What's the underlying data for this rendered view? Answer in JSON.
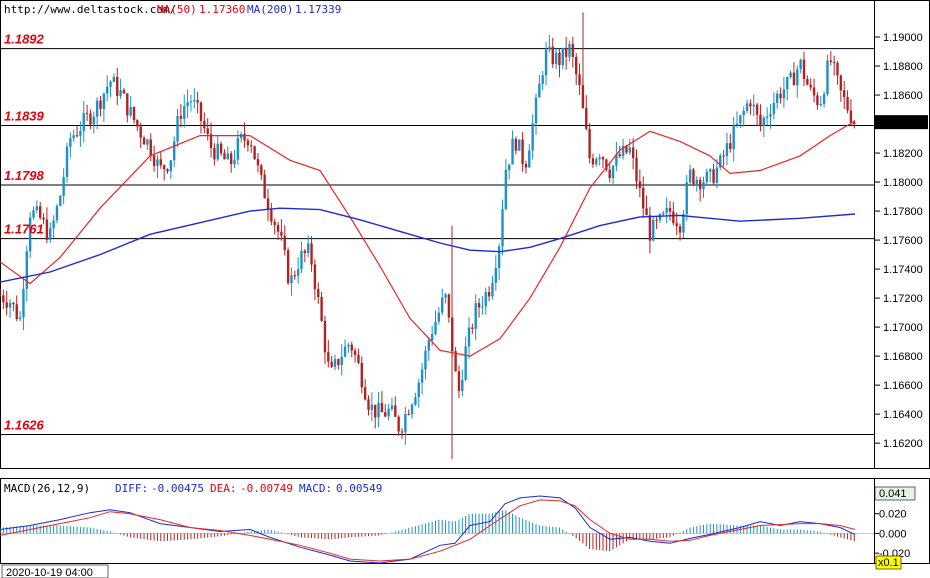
{
  "header": {
    "source": "http://www.deltastock.com/",
    "ma50_label": "MA(50)",
    "ma50_value": "1.17360",
    "ma200_label": "MA(200)",
    "ma200_value": "1.17339"
  },
  "colors": {
    "bull": "#1e90c8",
    "bear": "#b22222",
    "ma50": "#e8272a",
    "ma200": "#1c2bd6",
    "level_text": "#e8000b"
  },
  "chart_data": [
    {
      "type": "candlestick",
      "ylim": [
        1.1607,
        1.192
      ],
      "y_ticks": [
        "1.19000",
        "1.18800",
        "1.18600",
        "1.18400",
        "1.18200",
        "1.18000",
        "1.17800",
        "1.17600",
        "1.17400",
        "1.17200",
        "1.17000",
        "1.16800",
        "1.16600",
        "1.16400",
        "1.16200"
      ],
      "y_tick_values": [
        1.19,
        1.188,
        1.186,
        1.184,
        1.182,
        1.18,
        1.178,
        1.176,
        1.174,
        1.172,
        1.17,
        1.168,
        1.166,
        1.164,
        1.162
      ],
      "current_price": "1.18413",
      "current_price_value": 1.18413,
      "levels": [
        {
          "label": "1.1892",
          "value": 1.1892
        },
        {
          "label": "1.1839",
          "value": 1.1839
        },
        {
          "label": "1.1798",
          "value": 1.1798
        },
        {
          "label": "1.1761",
          "value": 1.1761
        },
        {
          "label": "1.1626",
          "value": 1.1626
        }
      ],
      "close_path": [
        [
          0,
          1.1722
        ],
        [
          10,
          1.1718
        ],
        [
          20,
          1.1705
        ],
        [
          25,
          1.1745
        ],
        [
          30,
          1.178
        ],
        [
          40,
          1.1775
        ],
        [
          50,
          1.1762
        ],
        [
          60,
          1.179
        ],
        [
          70,
          1.183
        ],
        [
          80,
          1.1838
        ],
        [
          95,
          1.185
        ],
        [
          110,
          1.187
        ],
        [
          120,
          1.1862
        ],
        [
          130,
          1.1848
        ],
        [
          140,
          1.1835
        ],
        [
          150,
          1.1825
        ],
        [
          160,
          1.1808
        ],
        [
          170,
          1.1815
        ],
        [
          180,
          1.1848
        ],
        [
          190,
          1.1858
        ],
        [
          200,
          1.1845
        ],
        [
          210,
          1.1825
        ],
        [
          220,
          1.1818
        ],
        [
          230,
          1.1812
        ],
        [
          240,
          1.1828
        ],
        [
          250,
          1.1832
        ],
        [
          260,
          1.1802
        ],
        [
          270,
          1.1782
        ],
        [
          280,
          1.1762
        ],
        [
          290,
          1.173
        ],
        [
          300,
          1.1748
        ],
        [
          310,
          1.1752
        ],
        [
          320,
          1.171
        ],
        [
          330,
          1.1665
        ],
        [
          340,
          1.168
        ],
        [
          350,
          1.169
        ],
        [
          360,
          1.167
        ],
        [
          370,
          1.1645
        ],
        [
          380,
          1.164
        ],
        [
          390,
          1.1642
        ],
        [
          400,
          1.163
        ],
        [
          410,
          1.1648
        ],
        [
          420,
          1.1665
        ],
        [
          430,
          1.1695
        ],
        [
          440,
          1.1712
        ],
        [
          445,
          1.1722
        ],
        [
          452,
          1.1688
        ],
        [
          458,
          1.1652
        ],
        [
          465,
          1.1682
        ],
        [
          475,
          1.171
        ],
        [
          490,
          1.1728
        ],
        [
          500,
          1.1762
        ],
        [
          505,
          1.1808
        ],
        [
          515,
          1.183
        ],
        [
          525,
          1.1812
        ],
        [
          535,
          1.1848
        ],
        [
          545,
          1.1888
        ],
        [
          560,
          1.1884
        ],
        [
          570,
          1.1892
        ],
        [
          580,
          1.1862
        ],
        [
          590,
          1.1815
        ],
        [
          600,
          1.1822
        ],
        [
          610,
          1.1808
        ],
        [
          620,
          1.1818
        ],
        [
          630,
          1.1822
        ],
        [
          640,
          1.1792
        ],
        [
          650,
          1.1765
        ],
        [
          660,
          1.1772
        ],
        [
          670,
          1.178
        ],
        [
          680,
          1.1772
        ],
        [
          690,
          1.1805
        ],
        [
          700,
          1.1802
        ],
        [
          710,
          1.1802
        ],
        [
          720,
          1.1812
        ],
        [
          730,
          1.1828
        ],
        [
          740,
          1.1842
        ],
        [
          750,
          1.1858
        ],
        [
          760,
          1.1838
        ],
        [
          770,
          1.1852
        ],
        [
          780,
          1.1862
        ],
        [
          790,
          1.1868
        ],
        [
          800,
          1.1882
        ],
        [
          810,
          1.1862
        ],
        [
          820,
          1.1855
        ],
        [
          830,
          1.1885
        ],
        [
          840,
          1.1862
        ],
        [
          850,
          1.1848
        ],
        [
          855,
          1.1841
        ]
      ],
      "ma50": [
        [
          0,
          1.1745
        ],
        [
          30,
          1.173
        ],
        [
          60,
          1.1748
        ],
        [
          100,
          1.1782
        ],
        [
          150,
          1.1818
        ],
        [
          200,
          1.1832
        ],
        [
          250,
          1.1832
        ],
        [
          290,
          1.1815
        ],
        [
          320,
          1.1808
        ],
        [
          350,
          1.1776
        ],
        [
          380,
          1.1742
        ],
        [
          410,
          1.1706
        ],
        [
          440,
          1.1684
        ],
        [
          470,
          1.168
        ],
        [
          500,
          1.1692
        ],
        [
          530,
          1.172
        ],
        [
          560,
          1.1755
        ],
        [
          590,
          1.1796
        ],
        [
          620,
          1.1822
        ],
        [
          650,
          1.1835
        ],
        [
          680,
          1.1828
        ],
        [
          710,
          1.1818
        ],
        [
          730,
          1.1806
        ],
        [
          760,
          1.1808
        ],
        [
          800,
          1.1818
        ],
        [
          830,
          1.1832
        ],
        [
          855,
          1.1842
        ]
      ],
      "ma200": [
        [
          0,
          1.1731
        ],
        [
          50,
          1.1738
        ],
        [
          100,
          1.175
        ],
        [
          150,
          1.1764
        ],
        [
          200,
          1.1772
        ],
        [
          250,
          1.178
        ],
        [
          280,
          1.1782
        ],
        [
          320,
          1.1781
        ],
        [
          360,
          1.1774
        ],
        [
          400,
          1.1766
        ],
        [
          440,
          1.1758
        ],
        [
          470,
          1.1753
        ],
        [
          500,
          1.1752
        ],
        [
          530,
          1.1755
        ],
        [
          560,
          1.1761
        ],
        [
          600,
          1.177
        ],
        [
          640,
          1.1776
        ],
        [
          680,
          1.1777
        ],
        [
          740,
          1.1773
        ],
        [
          800,
          1.1775
        ],
        [
          855,
          1.1778
        ]
      ]
    },
    {
      "type": "macd",
      "params": "MACD(26,12,9)",
      "diff_label": "DIFF:",
      "diff": "-0.00475",
      "dea_label": "DEA:",
      "dea": "-0.00749",
      "macd_label": "MACD:",
      "macd": "0.00549",
      "ylim": [
        -0.031,
        0.041
      ],
      "y_ticks": [
        "0.041",
        "0.020",
        "0.000",
        "-0.020"
      ],
      "y_tick_values": [
        0.041,
        0.02,
        0.0,
        -0.02
      ],
      "diff_series": [
        [
          0,
          0.004
        ],
        [
          30,
          0.008
        ],
        [
          60,
          0.014
        ],
        [
          90,
          0.021
        ],
        [
          110,
          0.024
        ],
        [
          130,
          0.021
        ],
        [
          160,
          0.01
        ],
        [
          190,
          0.006
        ],
        [
          220,
          0.002
        ],
        [
          250,
          0.004
        ],
        [
          270,
          -0.004
        ],
        [
          300,
          -0.014
        ],
        [
          330,
          -0.022
        ],
        [
          350,
          -0.028
        ],
        [
          380,
          -0.03
        ],
        [
          410,
          -0.026
        ],
        [
          440,
          -0.012
        ],
        [
          455,
          -0.01
        ],
        [
          470,
          0.008
        ],
        [
          490,
          0.012
        ],
        [
          505,
          0.03
        ],
        [
          520,
          0.036
        ],
        [
          540,
          0.038
        ],
        [
          560,
          0.036
        ],
        [
          575,
          0.026
        ],
        [
          590,
          0.006
        ],
        [
          610,
          -0.006
        ],
        [
          630,
          -0.004
        ],
        [
          650,
          -0.008
        ],
        [
          670,
          -0.01
        ],
        [
          690,
          -0.005
        ],
        [
          710,
          -0.001
        ],
        [
          740,
          0.006
        ],
        [
          760,
          0.012
        ],
        [
          780,
          0.008
        ],
        [
          800,
          0.012
        ],
        [
          820,
          0.01
        ],
        [
          840,
          0.006
        ],
        [
          855,
          -0.001
        ]
      ],
      "dea_series": [
        [
          0,
          -0.002
        ],
        [
          30,
          0.004
        ],
        [
          60,
          0.01
        ],
        [
          90,
          0.016
        ],
        [
          110,
          0.022
        ],
        [
          130,
          0.02
        ],
        [
          160,
          0.014
        ],
        [
          190,
          0.006
        ],
        [
          220,
          0.003
        ],
        [
          250,
          -0.002
        ],
        [
          270,
          -0.006
        ],
        [
          300,
          -0.012
        ],
        [
          330,
          -0.02
        ],
        [
          350,
          -0.026
        ],
        [
          380,
          -0.028
        ],
        [
          410,
          -0.026
        ],
        [
          440,
          -0.018
        ],
        [
          470,
          -0.006
        ],
        [
          490,
          0.008
        ],
        [
          505,
          0.018
        ],
        [
          520,
          0.028
        ],
        [
          540,
          0.034
        ],
        [
          560,
          0.033
        ],
        [
          575,
          0.028
        ],
        [
          590,
          0.014
        ],
        [
          610,
          0.0
        ],
        [
          630,
          -0.006
        ],
        [
          650,
          -0.006
        ],
        [
          670,
          -0.008
        ],
        [
          690,
          -0.007
        ],
        [
          710,
          -0.002
        ],
        [
          740,
          0.004
        ],
        [
          760,
          0.008
        ],
        [
          780,
          0.009
        ],
        [
          800,
          0.01
        ],
        [
          820,
          0.01
        ],
        [
          840,
          0.008
        ],
        [
          855,
          0.004
        ]
      ],
      "hist": [
        [
          0,
          0.006
        ],
        [
          30,
          0.008
        ],
        [
          60,
          0.008
        ],
        [
          90,
          0.006
        ],
        [
          110,
          0.002
        ],
        [
          130,
          -0.004
        ],
        [
          160,
          -0.008
        ],
        [
          190,
          -0.006
        ],
        [
          220,
          -0.003
        ],
        [
          250,
          0.002
        ],
        [
          270,
          0.004
        ],
        [
          300,
          -0.004
        ],
        [
          330,
          -0.006
        ],
        [
          350,
          -0.004
        ],
        [
          380,
          -0.002
        ],
        [
          410,
          0.006
        ],
        [
          440,
          0.014
        ],
        [
          455,
          0.012
        ],
        [
          470,
          0.02
        ],
        [
          490,
          0.02
        ],
        [
          505,
          0.024
        ],
        [
          520,
          0.016
        ],
        [
          540,
          0.008
        ],
        [
          560,
          0.006
        ],
        [
          575,
          -0.004
        ],
        [
          590,
          -0.016
        ],
        [
          610,
          -0.018
        ],
        [
          630,
          -0.006
        ],
        [
          650,
          -0.006
        ],
        [
          670,
          -0.004
        ],
        [
          690,
          0.006
        ],
        [
          710,
          0.01
        ],
        [
          740,
          0.008
        ],
        [
          760,
          0.008
        ],
        [
          780,
          0.004
        ],
        [
          800,
          0.004
        ],
        [
          820,
          0.002
        ],
        [
          840,
          -0.004
        ],
        [
          855,
          -0.008
        ]
      ],
      "scale_label": "x0.1",
      "time_label": "2020-10-19 04:00"
    }
  ]
}
